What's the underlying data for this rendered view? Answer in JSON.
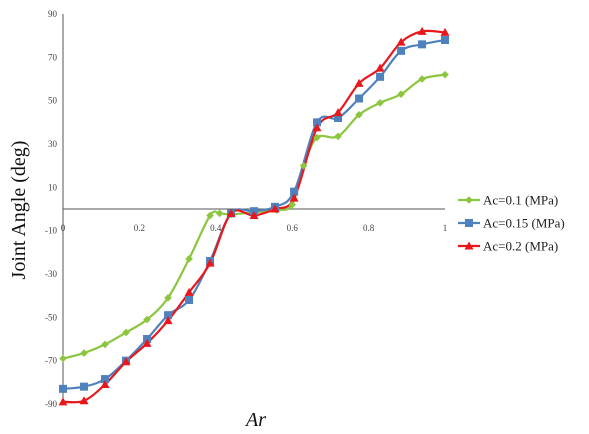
{
  "chart_data": {
    "type": "line",
    "title": "",
    "xlabel": "Ar",
    "ylabel": "Joint Angle (deg)",
    "xlim": [
      0,
      1
    ],
    "ylim": [
      -90,
      90
    ],
    "xticks": [
      "0",
      "0.2",
      "0.4",
      "0.6",
      "0.8",
      "1"
    ],
    "yticks": [
      "90",
      "70",
      "50",
      "30",
      "10",
      "-10",
      "-30",
      "-50",
      "-70",
      "-90"
    ],
    "legend_position": "right",
    "grid": false,
    "series": [
      {
        "name": "Ac=0.1 (MPa)",
        "color": "#8cc63f",
        "marker": "diamond",
        "x": [
          0,
          0.055,
          0.11,
          0.165,
          0.22,
          0.275,
          0.33,
          0.385,
          0.41,
          0.44,
          0.5,
          0.56,
          0.6,
          0.63,
          0.665,
          0.72,
          0.775,
          0.83,
          0.885,
          0.94,
          1.0
        ],
        "y": [
          -69,
          -66.5,
          -62.5,
          -57,
          -51,
          -41,
          -23,
          -3,
          -2,
          -2.5,
          -1.5,
          -0.5,
          2,
          20,
          33,
          33.5,
          43.5,
          49,
          53,
          60,
          62
        ]
      },
      {
        "name": "Ac=0.15 (MPa)",
        "color": "#4f81bd",
        "marker": "square",
        "x": [
          0,
          0.055,
          0.11,
          0.165,
          0.22,
          0.275,
          0.33,
          0.385,
          0.44,
          0.5,
          0.555,
          0.605,
          0.665,
          0.72,
          0.775,
          0.83,
          0.885,
          0.94,
          1.0
        ],
        "y": [
          -83,
          -82,
          -78.5,
          -70,
          -60,
          -49,
          -42,
          -24,
          -2,
          -1,
          1,
          8,
          40,
          42,
          51,
          61,
          73,
          76,
          78
        ]
      },
      {
        "name": "Ac=0.2 (MPa)",
        "color": "#e8171c",
        "marker": "triangle",
        "x": [
          0,
          0.055,
          0.11,
          0.165,
          0.22,
          0.275,
          0.33,
          0.385,
          0.44,
          0.5,
          0.555,
          0.605,
          0.665,
          0.72,
          0.775,
          0.83,
          0.885,
          0.94,
          1.0
        ],
        "y": [
          -89,
          -88.5,
          -81,
          -70.5,
          -62,
          -51.5,
          -38.5,
          -25,
          -2,
          -3,
          0,
          5,
          37.5,
          44.5,
          58,
          65,
          77,
          82,
          81.5
        ]
      }
    ]
  }
}
